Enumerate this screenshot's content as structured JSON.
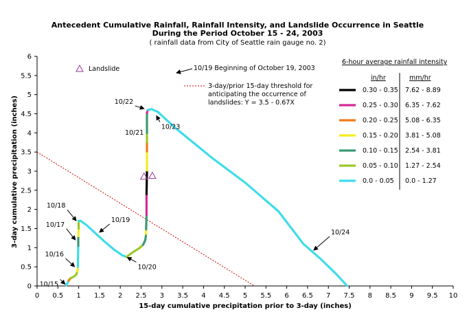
{
  "chart_data": {
    "type": "line",
    "title_lines": [
      "Antecedent Cumulative Rainfall, Rainfall Intensity, and Landslide Occurrence in Seattle",
      "During the Period October 15 - 24, 2003"
    ],
    "subtitle": "( rainfall data from City of Seattle rain gauge no. 2)",
    "xlabel": "15-day cumulative precipitation prior to 3-day (inches)",
    "ylabel": "3-day cumulative precipitation (inches)",
    "xlim": [
      0,
      10
    ],
    "ylim": [
      0,
      6
    ],
    "xticks": [
      "0",
      "0.5",
      "1",
      "1.5",
      "2",
      "2.5",
      "3",
      "3.5",
      "4",
      "4.5",
      "5",
      "5.5",
      "6",
      "6.5",
      "7",
      "7.5",
      "8",
      "8.5",
      "9",
      "9.5",
      "10"
    ],
    "yticks": [
      "0",
      "0.5",
      "1",
      "1.5",
      "2",
      "2.5",
      "3",
      "3.5",
      "4",
      "4.5",
      "5",
      "5.5",
      "6"
    ],
    "grid": false,
    "threshold": {
      "label": "3-day/prior 15-day threshold for anticipating the occurrence of landslides: Y = 3.5 - 0.67X",
      "label_lines": [
        "3-day/prior 15-day threshold for",
        "anticipating the occurrence of",
        "landslides: Y = 3.5 - 0.67X"
      ],
      "intercept": 3.5,
      "slope": -0.67,
      "color": "#cc0000"
    },
    "landslide_marker": {
      "label": "Landslide",
      "color": "#993399",
      "points": [
        [
          2.57,
          2.86
        ],
        [
          2.77,
          2.88
        ]
      ]
    },
    "intensity_legend": {
      "title": "6-hour average rainfall intensity",
      "col_headers": [
        "in/hr",
        "mm/hr"
      ],
      "classes": [
        {
          "in_hr": "0.30 - 0.35",
          "mm_hr": "7.62 - 8.89",
          "color": "#000000"
        },
        {
          "in_hr": "0.25 - 0.30",
          "mm_hr": "6.35 - 7.62",
          "color": "#d42a9a"
        },
        {
          "in_hr": "0.20 - 0.25",
          "mm_hr": "5.08 - 6.35",
          "color": "#f07a1a"
        },
        {
          "in_hr": "0.15 - 0.20",
          "mm_hr": "3.81 - 5.08",
          "color": "#f4ec22"
        },
        {
          "in_hr": "0.10 - 0.15",
          "mm_hr": "2.54 - 3.81",
          "color": "#3a9a74"
        },
        {
          "in_hr": "0.05 - 0.10",
          "mm_hr": "1.27 - 2.54",
          "color": "#9cc82a"
        },
        {
          "in_hr": "0.0 - 0.05",
          "mm_hr": "0.0 - 1.27",
          "color": "#3fdcea"
        }
      ]
    },
    "date_note": "10/19 Beginning of October 19, 2003",
    "date_labels": [
      {
        "text": "10/15",
        "point": [
          0.72,
          0.1
        ]
      },
      {
        "text": "10/16",
        "point": [
          0.95,
          0.45
        ]
      },
      {
        "text": "10/17",
        "point": [
          0.97,
          1.15
        ]
      },
      {
        "text": "10/18",
        "point": [
          0.99,
          1.65
        ]
      },
      {
        "text": "10/19",
        "point": [
          1.45,
          1.35
        ]
      },
      {
        "text": "10/20",
        "point": [
          2.12,
          0.8
        ]
      },
      {
        "text": "10/21",
        "point": [
          2.64,
          3.95
        ]
      },
      {
        "text": "10/22",
        "point": [
          2.62,
          4.58
        ]
      },
      {
        "text": "10/23",
        "point": [
          2.82,
          4.5
        ]
      },
      {
        "text": "10/24",
        "point": [
          6.6,
          0.88
        ]
      }
    ],
    "series": [
      {
        "segments": [
          {
            "class": 6,
            "points": [
              [
                0.7,
                0.02
              ],
              [
                0.73,
                0.08
              ],
              [
                0.76,
                0.14
              ]
            ]
          },
          {
            "class": 2,
            "points": [
              [
                0.76,
                0.14
              ],
              [
                0.8,
                0.2
              ]
            ]
          },
          {
            "class": 5,
            "points": [
              [
                0.8,
                0.2
              ],
              [
                0.88,
                0.24
              ],
              [
                0.94,
                0.3
              ],
              [
                0.97,
                0.38
              ]
            ]
          },
          {
            "class": 3,
            "points": [
              [
                0.97,
                0.38
              ],
              [
                0.98,
                0.5
              ]
            ]
          },
          {
            "class": 6,
            "points": [
              [
                0.98,
                0.5
              ],
              [
                0.99,
                1.05
              ]
            ]
          },
          {
            "class": 4,
            "points": [
              [
                0.99,
                1.05
              ],
              [
                0.99,
                1.3
              ]
            ]
          },
          {
            "class": 3,
            "points": [
              [
                0.99,
                1.3
              ],
              [
                1.0,
                1.5
              ]
            ]
          },
          {
            "class": 5,
            "points": [
              [
                1.0,
                1.5
              ],
              [
                1.0,
                1.7
              ]
            ]
          },
          {
            "class": 6,
            "points": [
              [
                1.0,
                1.7
              ],
              [
                1.05,
                1.7
              ],
              [
                1.2,
                1.58
              ],
              [
                1.4,
                1.38
              ],
              [
                1.6,
                1.18
              ],
              [
                1.85,
                0.95
              ],
              [
                2.05,
                0.8
              ],
              [
                2.15,
                0.76
              ]
            ]
          },
          {
            "class": 5,
            "points": [
              [
                2.15,
                0.76
              ],
              [
                2.3,
                0.88
              ],
              [
                2.45,
                0.98
              ],
              [
                2.55,
                1.08
              ]
            ]
          },
          {
            "class": 4,
            "points": [
              [
                2.55,
                1.08
              ],
              [
                2.6,
                1.2
              ],
              [
                2.62,
                1.36
              ]
            ]
          },
          {
            "class": 3,
            "points": [
              [
                2.62,
                1.36
              ],
              [
                2.62,
                1.48
              ]
            ]
          },
          {
            "class": 4,
            "points": [
              [
                2.62,
                1.48
              ],
              [
                2.63,
                1.86
              ]
            ]
          },
          {
            "class": 1,
            "points": [
              [
                2.63,
                1.86
              ],
              [
                2.63,
                2.4
              ]
            ]
          },
          {
            "class": 0,
            "points": [
              [
                2.63,
                2.4
              ],
              [
                2.64,
                3.02
              ]
            ]
          },
          {
            "class": 3,
            "points": [
              [
                2.64,
                3.02
              ],
              [
                2.64,
                3.52
              ]
            ]
          },
          {
            "class": 2,
            "points": [
              [
                2.64,
                3.52
              ],
              [
                2.64,
                3.76
              ]
            ]
          },
          {
            "class": 5,
            "points": [
              [
                2.64,
                3.76
              ],
              [
                2.64,
                4.0
              ]
            ]
          },
          {
            "class": 4,
            "points": [
              [
                2.64,
                4.0
              ],
              [
                2.64,
                4.52
              ]
            ]
          },
          {
            "class": 1,
            "points": [
              [
                2.64,
                4.52
              ],
              [
                2.66,
                4.6
              ]
            ]
          },
          {
            "class": 6,
            "points": [
              [
                2.66,
                4.6
              ],
              [
                2.75,
                4.62
              ],
              [
                2.9,
                4.55
              ],
              [
                3.3,
                4.15
              ],
              [
                4.2,
                3.35
              ],
              [
                5.0,
                2.7
              ],
              [
                5.8,
                1.95
              ],
              [
                6.4,
                1.1
              ],
              [
                6.8,
                0.72
              ],
              [
                7.2,
                0.3
              ],
              [
                7.45,
                0.0
              ]
            ]
          }
        ]
      }
    ]
  }
}
